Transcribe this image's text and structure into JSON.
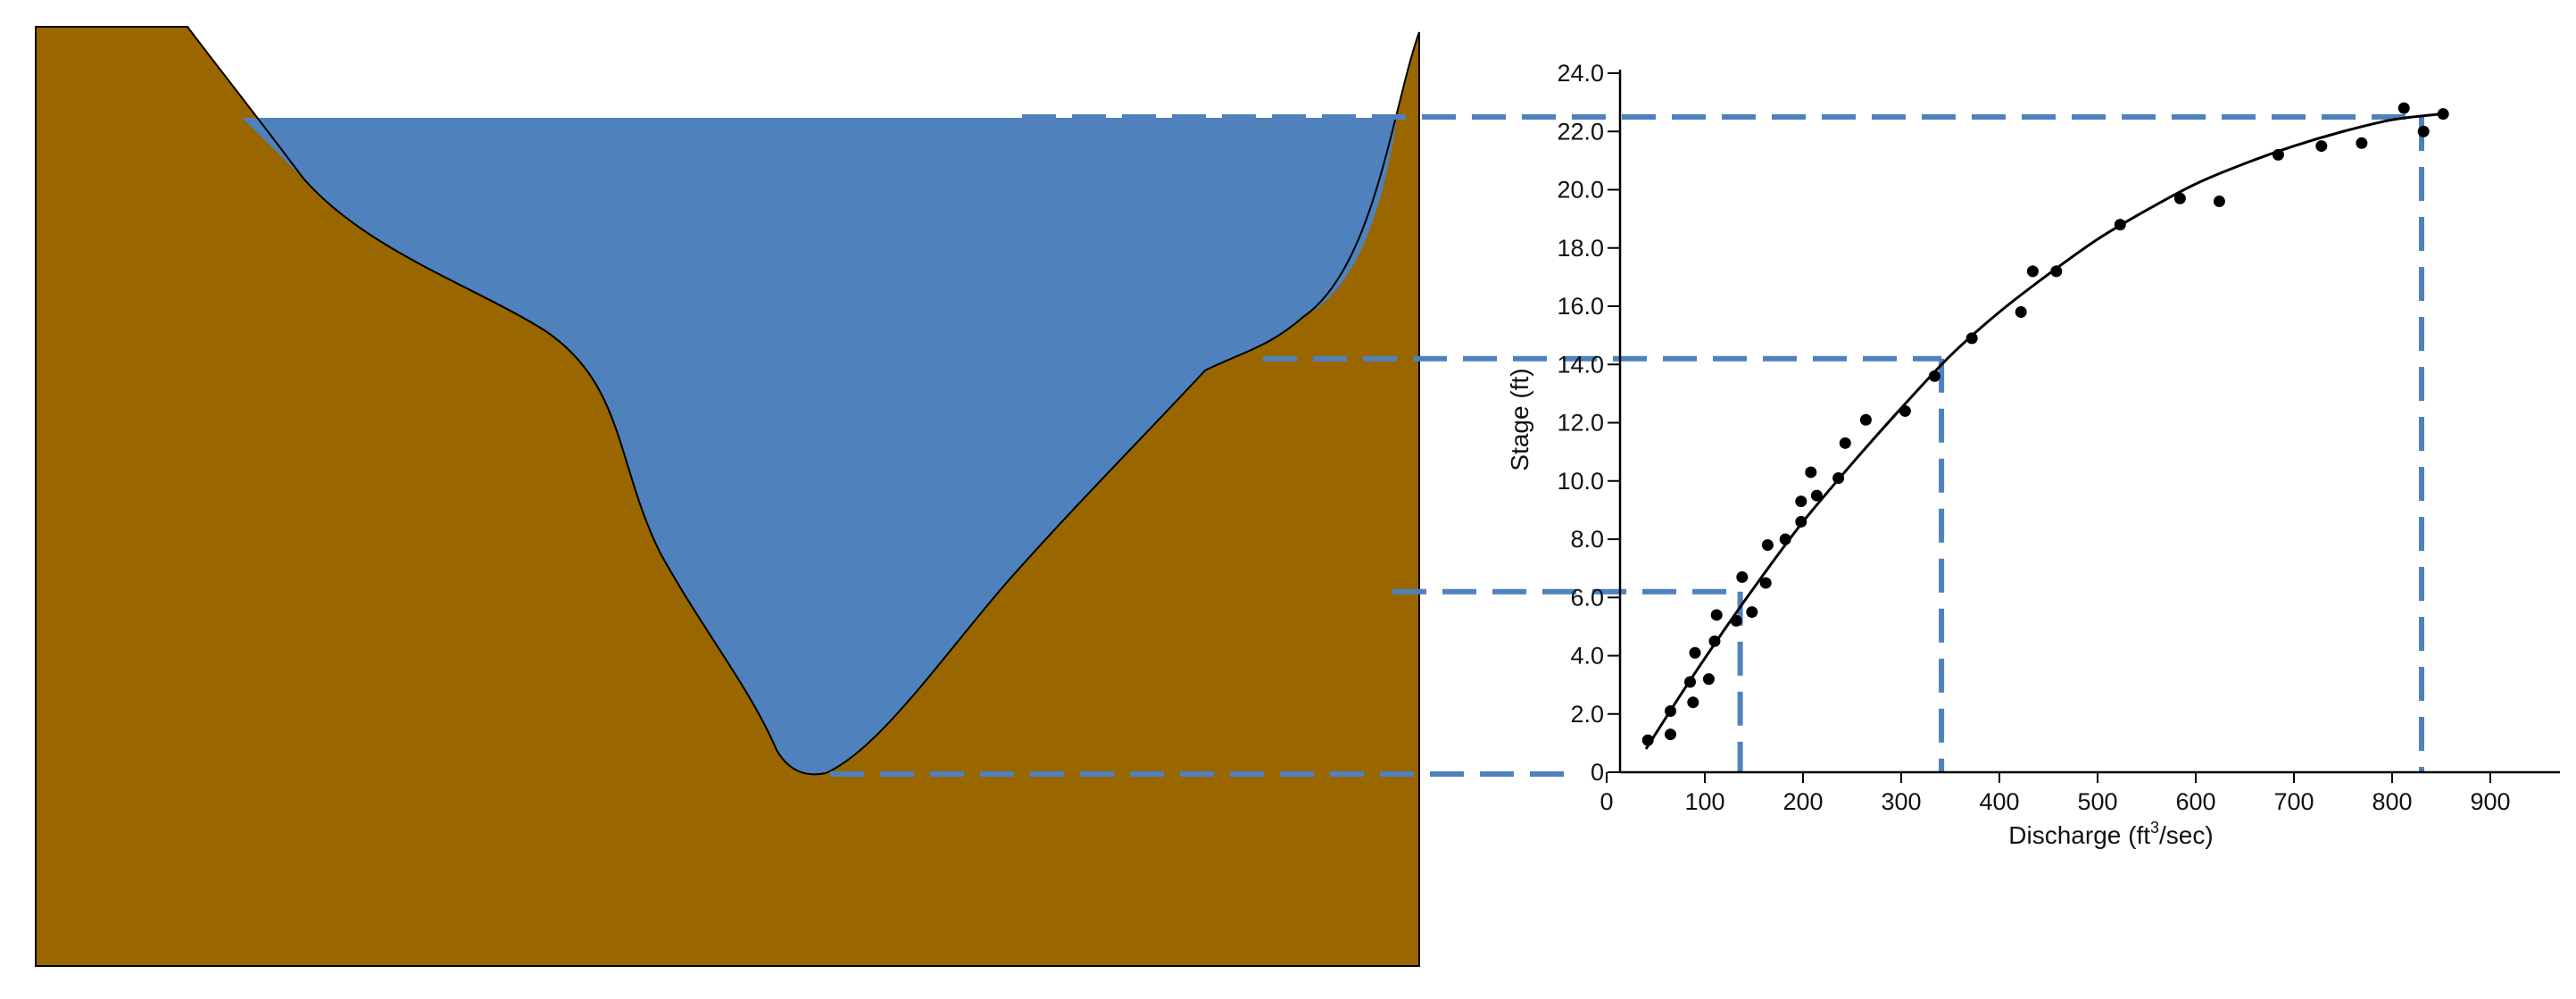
{
  "colors": {
    "ground": "#996600",
    "water": "#4F81BD",
    "guide_line": "#4F81BD",
    "curve": "#000000",
    "points": "#000000"
  },
  "chart_data": {
    "type": "scatter",
    "title": "",
    "xlabel": "Discharge (ft",
    "xlabel_sup": "3",
    "xlabel_tail": "/sec)",
    "ylabel": "Stage (ft)",
    "xlim": [
      0,
      900
    ],
    "ylim": [
      0,
      24
    ],
    "x_ticks": [
      0,
      100,
      200,
      300,
      400,
      500,
      600,
      700,
      800,
      900
    ],
    "x_tick_labels": [
      "0",
      "100",
      "200",
      "300",
      "400",
      "500",
      "600",
      "700",
      "800",
      "900"
    ],
    "y_ticks": [
      0,
      2,
      4,
      6,
      8,
      10,
      12,
      14,
      16,
      18,
      20,
      22,
      24
    ],
    "y_tick_labels": [
      "0",
      "2.0",
      "4.0",
      "6.0",
      "8.0",
      "10.0",
      "12.0",
      "14.0",
      "16.0",
      "18.0",
      "20.0",
      "22.0",
      "24.0"
    ],
    "grid": false,
    "legend": "none",
    "points": [
      {
        "x": 42,
        "y": 1.1
      },
      {
        "x": 65,
        "y": 1.3
      },
      {
        "x": 65,
        "y": 2.1
      },
      {
        "x": 88,
        "y": 2.4
      },
      {
        "x": 85,
        "y": 3.1
      },
      {
        "x": 90,
        "y": 4.1
      },
      {
        "x": 104,
        "y": 3.2
      },
      {
        "x": 110,
        "y": 4.5
      },
      {
        "x": 112,
        "y": 5.4
      },
      {
        "x": 132,
        "y": 5.2
      },
      {
        "x": 138,
        "y": 6.7
      },
      {
        "x": 148,
        "y": 5.5
      },
      {
        "x": 162,
        "y": 6.5
      },
      {
        "x": 164,
        "y": 7.8
      },
      {
        "x": 182,
        "y": 8.0
      },
      {
        "x": 198,
        "y": 8.6
      },
      {
        "x": 198,
        "y": 9.3
      },
      {
        "x": 208,
        "y": 10.3
      },
      {
        "x": 214,
        "y": 9.5
      },
      {
        "x": 236,
        "y": 10.1
      },
      {
        "x": 243,
        "y": 11.3
      },
      {
        "x": 264,
        "y": 12.1
      },
      {
        "x": 304,
        "y": 12.4
      },
      {
        "x": 334,
        "y": 13.6
      },
      {
        "x": 372,
        "y": 14.9
      },
      {
        "x": 422,
        "y": 15.8
      },
      {
        "x": 434,
        "y": 17.2
      },
      {
        "x": 458,
        "y": 17.2
      },
      {
        "x": 523,
        "y": 18.8
      },
      {
        "x": 584,
        "y": 19.7
      },
      {
        "x": 624,
        "y": 19.6
      },
      {
        "x": 684,
        "y": 21.2
      },
      {
        "x": 728,
        "y": 21.5
      },
      {
        "x": 769,
        "y": 21.6
      },
      {
        "x": 812,
        "y": 22.8
      },
      {
        "x": 832,
        "y": 22.0
      },
      {
        "x": 852,
        "y": 22.6
      }
    ],
    "fitted_curve": [
      {
        "x": 40,
        "y": 0.8
      },
      {
        "x": 80,
        "y": 2.9
      },
      {
        "x": 120,
        "y": 4.9
      },
      {
        "x": 160,
        "y": 6.8
      },
      {
        "x": 200,
        "y": 8.6
      },
      {
        "x": 250,
        "y": 10.6
      },
      {
        "x": 300,
        "y": 12.5
      },
      {
        "x": 350,
        "y": 14.3
      },
      {
        "x": 400,
        "y": 15.8
      },
      {
        "x": 450,
        "y": 17.1
      },
      {
        "x": 500,
        "y": 18.3
      },
      {
        "x": 550,
        "y": 19.3
      },
      {
        "x": 600,
        "y": 20.2
      },
      {
        "x": 650,
        "y": 20.9
      },
      {
        "x": 700,
        "y": 21.5
      },
      {
        "x": 750,
        "y": 22.0
      },
      {
        "x": 800,
        "y": 22.4
      },
      {
        "x": 850,
        "y": 22.6
      }
    ],
    "guides": [
      {
        "x": 136,
        "y": 6.2
      },
      {
        "x": 341,
        "y": 14.2
      },
      {
        "x": 830,
        "y": 22.5
      },
      {
        "x": 0,
        "y": 0
      }
    ]
  }
}
